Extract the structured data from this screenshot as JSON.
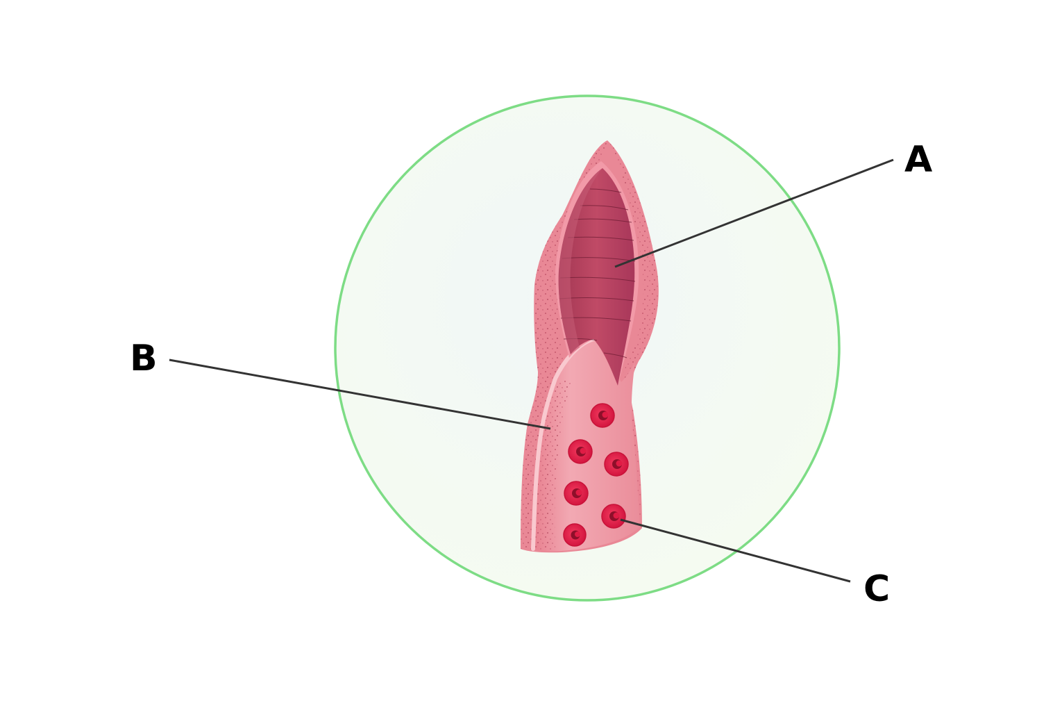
{
  "diagram": {
    "labels": {
      "a": "A",
      "b": "B",
      "c": "C"
    },
    "colors": {
      "circle_stroke": "#7ddc85",
      "circle_fill_center": "#f2f8f5",
      "circle_fill_edge": "#f6fcf2",
      "villus_outer": "#e98a98",
      "villus_wall": "#f0a3ae",
      "lacteal": "#b6405b",
      "lacteal_light": "#c4566f",
      "capillary": "#e31b47",
      "capillary_dark": "#8e0f2a",
      "leader_line": "#333333",
      "label": "#000000"
    },
    "icons": [
      "villus-illustration"
    ]
  }
}
